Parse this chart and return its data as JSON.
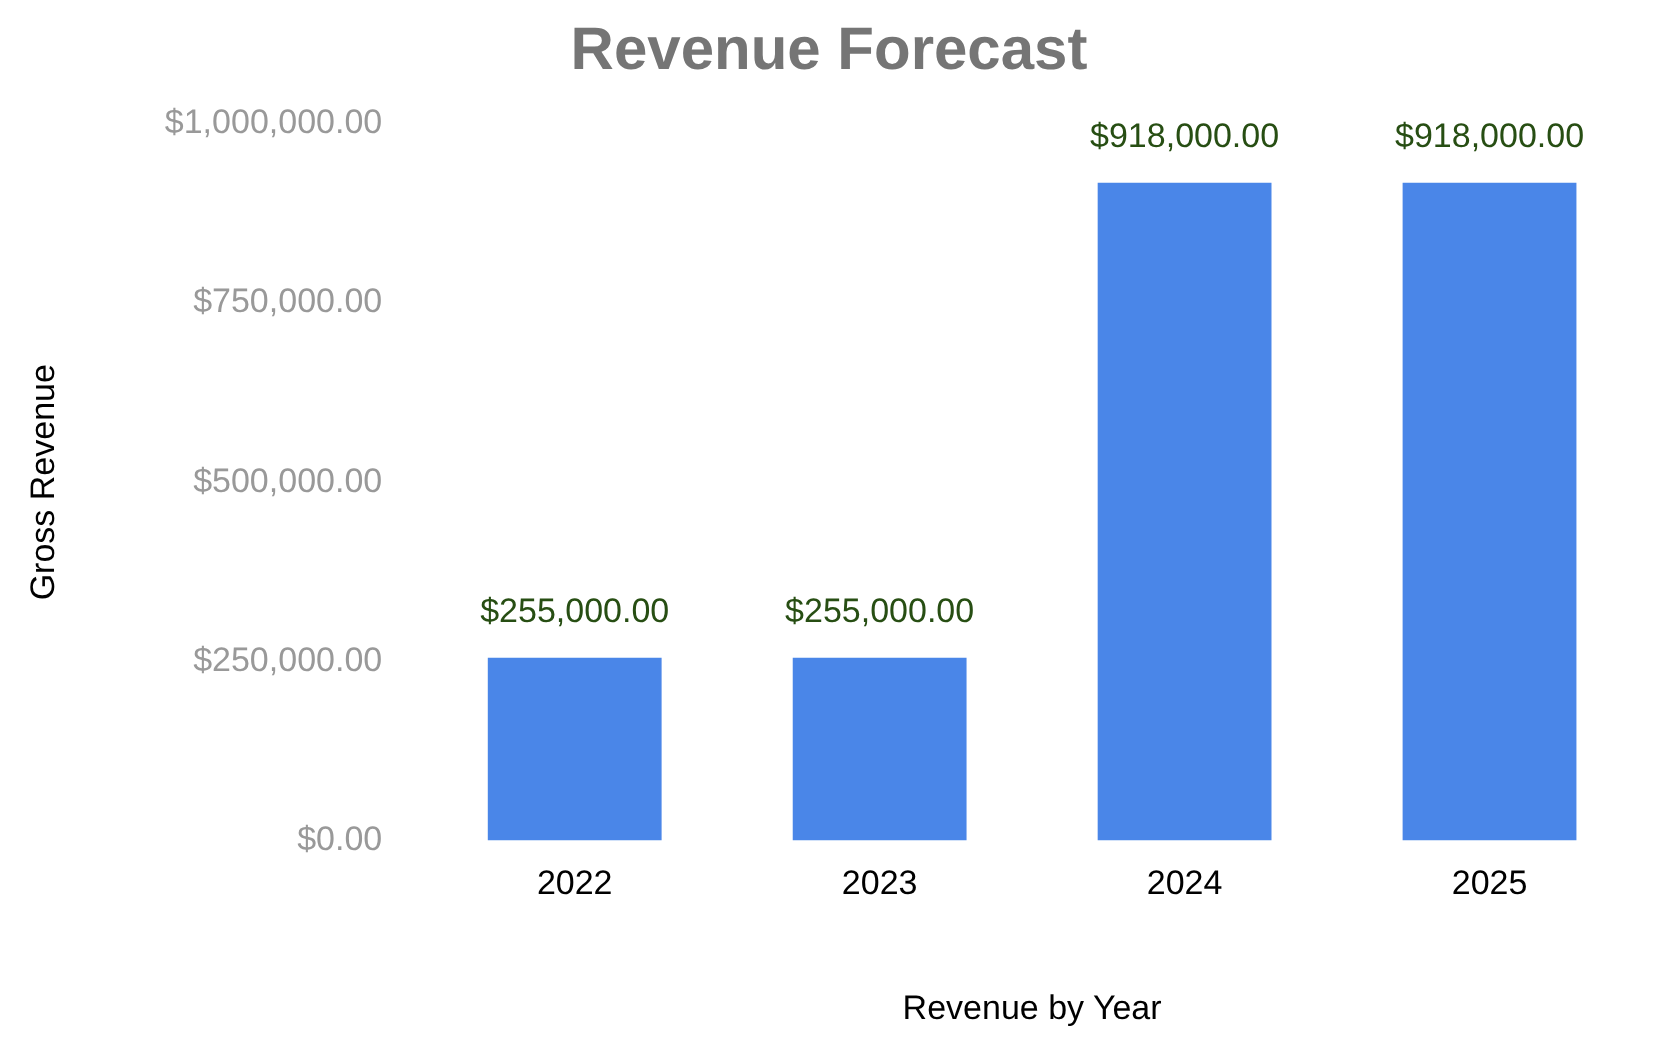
{
  "chart_data": {
    "type": "bar",
    "title": "Revenue Forecast",
    "xlabel": "Revenue by Year",
    "ylabel": "Gross Revenue",
    "categories": [
      "2022",
      "2023",
      "2024",
      "2025"
    ],
    "values": [
      255000,
      255000,
      918000,
      918000
    ],
    "color": "#4a86e8",
    "value_labels": [
      "$255,000.00",
      "$255,000.00",
      "$918,000.00",
      "$918,000.00"
    ],
    "ylim": [
      0,
      1000000
    ],
    "yticks": [
      {
        "value": 0,
        "label": "$0.00"
      },
      {
        "value": 250000,
        "label": "$250,000.00"
      },
      {
        "value": 500000,
        "label": "$500,000.00"
      },
      {
        "value": 750000,
        "label": "$750,000.00"
      },
      {
        "value": 1000000,
        "label": "$1,000,000.00"
      }
    ],
    "grid": false,
    "legend": false
  }
}
